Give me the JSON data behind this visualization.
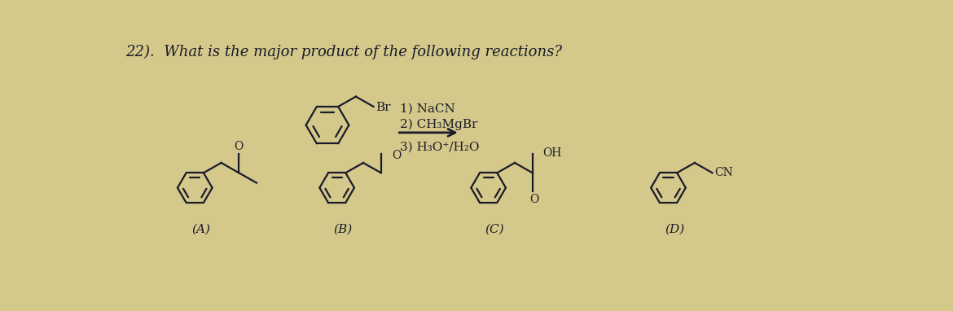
{
  "background_color": "#d4c98a",
  "title": "22).  What is the major product of the following reactions?",
  "title_fontsize": 13,
  "reaction_steps": [
    "1) NaCN",
    "2) CH₃MgBr",
    "3) H₃O⁺/H₂O"
  ],
  "labels": [
    "(A)",
    "(B)",
    "(C)",
    "(D)"
  ],
  "text_color": "#1a1a2a",
  "line_width": 1.6
}
